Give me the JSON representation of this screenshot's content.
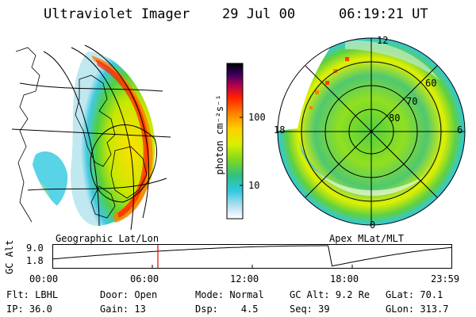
{
  "header": {
    "title": "Ultraviolet Imager",
    "date": "29 Jul 00",
    "time": "06:19:21 UT"
  },
  "panels": {
    "left_label": "Geographic Lat/Lon",
    "right_label": "Apex MLat/MLT"
  },
  "colorbar": {
    "label": "photon cm⁻²s⁻¹",
    "ticks": [
      "100",
      "10"
    ],
    "colors": [
      "#000000",
      "#1a0040",
      "#6a0070",
      "#c80040",
      "#ff2000",
      "#ff7f00",
      "#ffc800",
      "#e8f000",
      "#a0e000",
      "#40d030",
      "#30c0a0",
      "#30c8e0",
      "#b0e0f0",
      "#ffffff"
    ]
  },
  "polar": {
    "mlt_labels": {
      "top": "12",
      "left": "18",
      "right": "6",
      "bottom": "0"
    },
    "lat_labels": [
      "60",
      "70",
      "80"
    ]
  },
  "altitude_plot": {
    "ylabel": "GC Alt",
    "yticks": [
      "9.0",
      "1.8"
    ],
    "xticks": [
      "00:00",
      "06:00",
      "12:00",
      "18:00",
      "23:59"
    ],
    "marker_hour": 6.32
  },
  "info": {
    "row1": [
      {
        "label": "Flt:",
        "value": "LBHL"
      },
      {
        "label": "Door:",
        "value": "Open"
      },
      {
        "label": "Mode:",
        "value": "Normal"
      },
      {
        "label": "GC Alt:",
        "value": "9.2 Re"
      },
      {
        "label": "GLat:",
        "value": "70.1"
      }
    ],
    "row2": [
      {
        "label": "IP:",
        "value": "36.0"
      },
      {
        "label": "Gain:",
        "value": "13"
      },
      {
        "label": "Dsp:",
        "value": "4.5"
      },
      {
        "label": "Seq:",
        "value": "39"
      },
      {
        "label": "GLon:",
        "value": "313.7"
      }
    ]
  }
}
